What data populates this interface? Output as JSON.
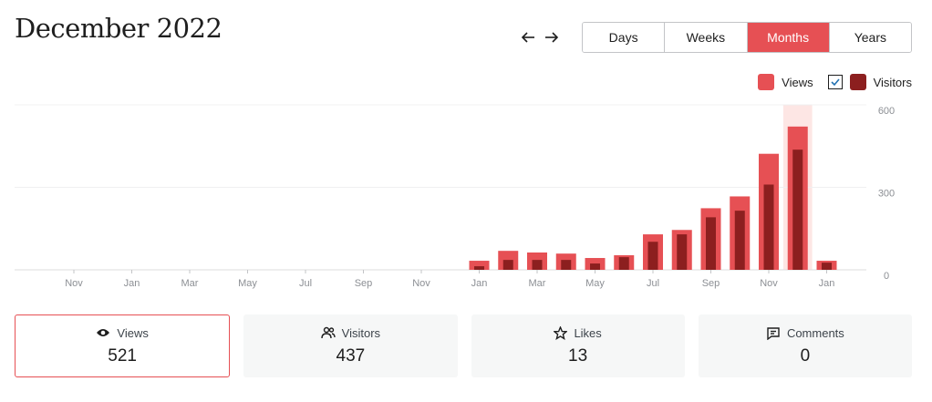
{
  "header": {
    "title": "December 2022",
    "periods": [
      "Days",
      "Weeks",
      "Months",
      "Years"
    ],
    "active_period": 2
  },
  "chart_data": {
    "type": "bar",
    "categories": [
      "Nov",
      null,
      "Jan",
      null,
      "Mar",
      null,
      "May",
      null,
      "Jul",
      null,
      "Sep",
      null,
      "Nov",
      null,
      "Jan",
      null,
      "Mar",
      null,
      "May",
      null,
      "Jul",
      null,
      "Sep",
      null,
      "Nov",
      null,
      "Jan"
    ],
    "series": [
      {
        "name": "Views",
        "color": "#e65054",
        "values": [
          0,
          0,
          0,
          0,
          0,
          0,
          0,
          0,
          0,
          0,
          0,
          0,
          0,
          0,
          33,
          69,
          63,
          59,
          43,
          53,
          129,
          145,
          224,
          267,
          422,
          521,
          33
        ]
      },
      {
        "name": "Visitors",
        "color": "#8c1f1f",
        "values": [
          0,
          0,
          0,
          0,
          0,
          0,
          0,
          0,
          0,
          0,
          0,
          0,
          0,
          0,
          13,
          36,
          36,
          36,
          23,
          46,
          102,
          129,
          191,
          215,
          310,
          437,
          26
        ]
      }
    ],
    "ylim": [
      0,
      600
    ],
    "yticks": [
      0,
      300,
      600
    ],
    "grid": true,
    "highlight_index": 25,
    "highlight_color": "#fde6e4"
  },
  "stats": [
    {
      "label": "Views",
      "value": 521
    },
    {
      "label": "Visitors",
      "value": 437
    },
    {
      "label": "Likes",
      "value": 13
    },
    {
      "label": "Comments",
      "value": 0
    }
  ],
  "active_stat": 0
}
